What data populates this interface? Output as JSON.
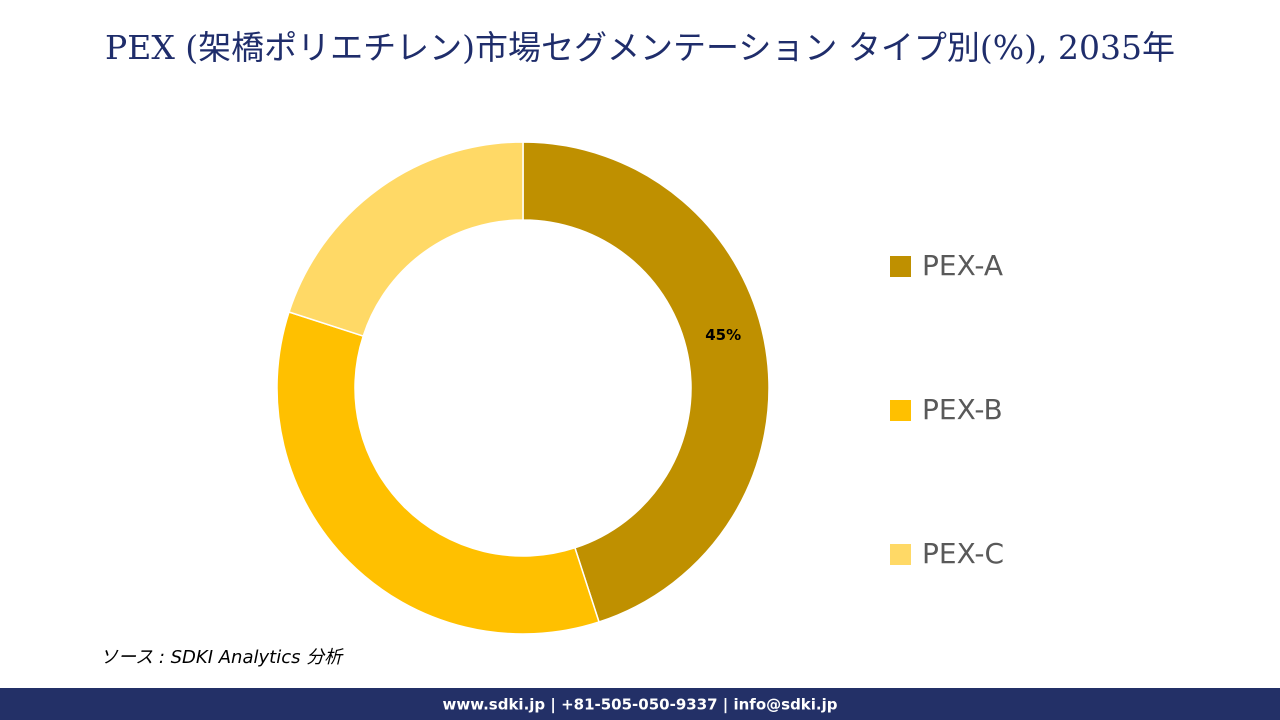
{
  "chart_data": {
    "type": "donut",
    "title": "PEX (架橋ポリエチレン)市場セグメンテーション タイプ別(%), 2035年",
    "categories": [
      "PEX-A",
      "PEX-B",
      "PEX-C"
    ],
    "values": [
      45,
      35,
      20
    ],
    "value_labels": [
      "45%",
      null,
      null
    ],
    "colors": [
      "#bf9000",
      "#ffc000",
      "#ffd966"
    ],
    "legend": "right"
  },
  "source": "ソース : SDKI Analytics 分析",
  "footer": "www.sdki.jp | +81-505-050-9337 | info@sdki.jp"
}
